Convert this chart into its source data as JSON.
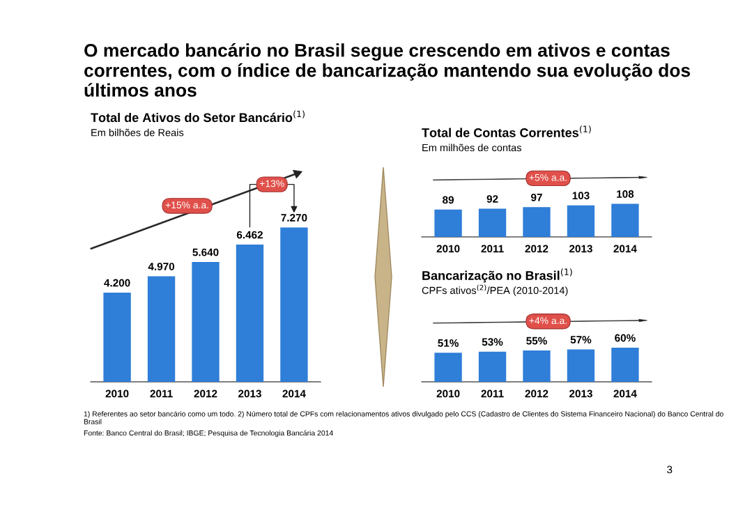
{
  "chart_data": [
    {
      "type": "bar",
      "title": "Total de Ativos do Setor Bancário$^{(1)}$",
      "subtitle": "Em bilhões de Reais",
      "categories": [
        "2010",
        "2011",
        "2012",
        "2013",
        "2014"
      ],
      "values": [
        4200,
        4970,
        5640,
        6462,
        7270
      ],
      "value_labels": [
        "4.200",
        "4.970",
        "5.640",
        "6.462",
        "7.270"
      ],
      "color": "#2f7ed8",
      "annotations": [
        "+15% a.a.",
        "+13%"
      ]
    },
    {
      "type": "bar",
      "title": "Total de Contas Correntes$^{(1)}$",
      "subtitle": "Em milhões de contas",
      "categories": [
        "2010",
        "2011",
        "2012",
        "2013",
        "2014"
      ],
      "values": [
        89,
        92,
        97,
        103,
        108
      ],
      "value_labels": [
        "89",
        "92",
        "97",
        "103",
        "108"
      ],
      "color": "#2f7ed8",
      "annotations": [
        "+5% a.a."
      ]
    },
    {
      "type": "bar",
      "title": "Bancarização no Brasil$^{(1)}$",
      "subtitle": "CPFs ativos$^{(2)}$/PEA (2010-2014)",
      "categories": [
        "2010",
        "2011",
        "2012",
        "2013",
        "2014"
      ],
      "values": [
        51,
        53,
        55,
        57,
        60
      ],
      "value_labels": [
        "51%",
        "53%",
        "55%",
        "57%",
        "60%"
      ],
      "color": "#2f7ed8",
      "annotations": [
        "+4% a.a."
      ]
    },
    {
      "type": "other",
      "title": "O mercado bancário no Brasil segue crescendo em ativos e contas correntes, com o índice de bancarização mantendo sua evolução dos últimos anos",
      "annotations": [
        "1) Referentes ao setor bancário como um todo. 2) Número total de CPFs com relacionamentos ativos divulgado pelo CCS (Cadastro de Clientes do Sistema Financeiro Nacional) do Banco Central do Brasil",
        "Fonte: Banco Central do Brasil; IBGE; Pesquisa de Tecnologia Bancária 2014",
        "3"
      ]
    }
  ]
}
